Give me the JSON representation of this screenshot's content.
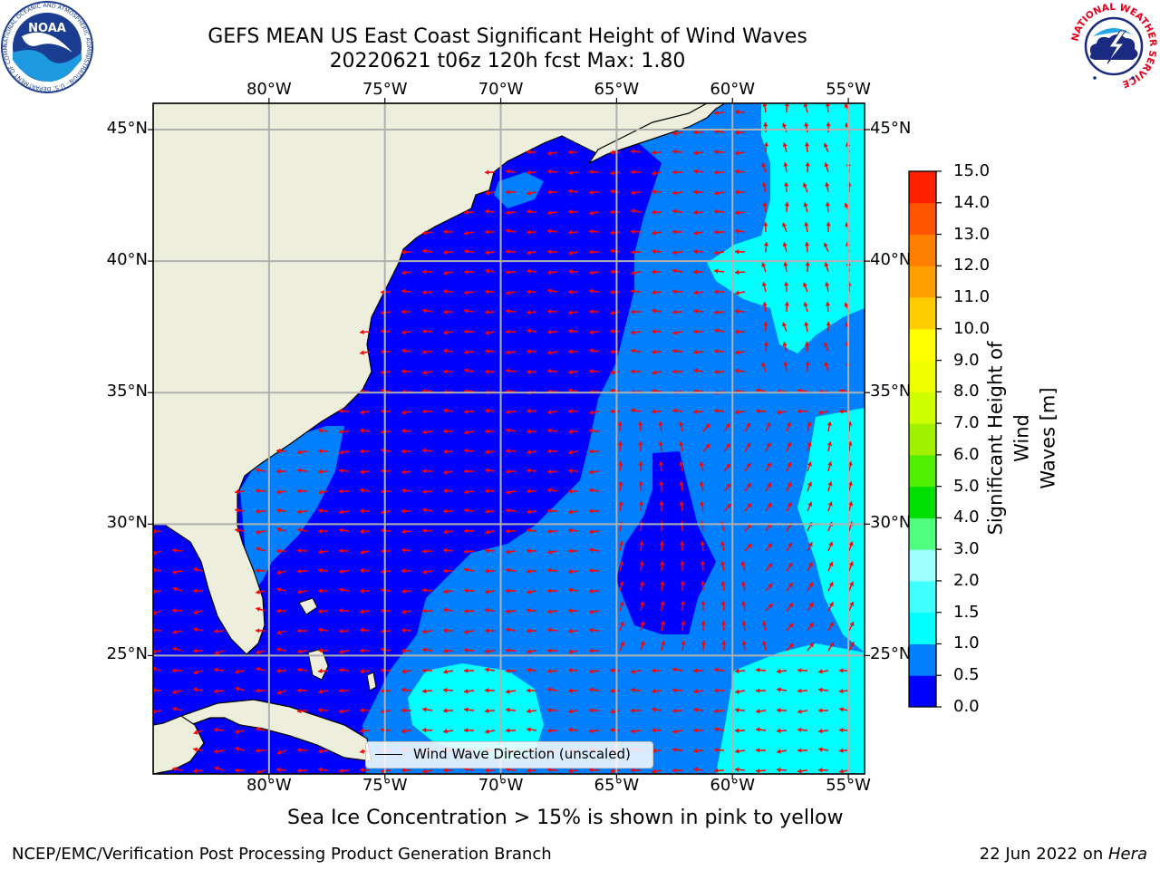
{
  "header": {
    "title_line1": "GEFS MEAN US East Coast Significant Height of Wind Waves",
    "title_line2": "20220621 t06z 120h fcst   Max: 1.80"
  },
  "logos": {
    "noaa_text": "NOAA",
    "noaa_ring_text": "NATIONAL OCEANIC AND ATMOSPHERIC ADMINISTRATION · U.S. DEPARTMENT OF COMMERCE",
    "nws_ring_text": "NATIONAL WEATHER SERVICE"
  },
  "map": {
    "lon_ticks": [
      "80°W",
      "75°W",
      "70°W",
      "65°W",
      "60°W",
      "55°W"
    ],
    "lat_ticks": [
      "45°N",
      "40°N",
      "35°N",
      "30°N",
      "25°N"
    ],
    "lat_tick_values": [
      45,
      40,
      35,
      30,
      25
    ],
    "lon_tick_values": [
      -80,
      -75,
      -70,
      -65,
      -60,
      -55
    ],
    "extent": {
      "lon_min": -85,
      "lon_max": -54.3,
      "lat_min": 20.5,
      "lat_max": 46
    },
    "legend_label": "Wind Wave Direction (unscaled)",
    "land_color": "#eeeedc",
    "arrow_color": "#ff0000"
  },
  "colorbar": {
    "title": "Significant Height of Wind Waves [m]",
    "title_line1": "Significant Height of Wind",
    "title_line2": "Waves [m]",
    "labels": [
      "15.0",
      "14.0",
      "13.0",
      "12.0",
      "11.0",
      "10.0",
      "9.0",
      "8.0",
      "7.0",
      "6.0",
      "5.0",
      "4.0",
      "3.0",
      "2.0",
      "1.5",
      "1.0",
      "0.5",
      "0.0"
    ],
    "bins_bottom_to_top": [
      "#0000ff",
      "#0080ff",
      "#00ffff",
      "#40ffff",
      "#a0ffff",
      "#50ff80",
      "#00e000",
      "#50ee00",
      "#a0f000",
      "#d0ff00",
      "#f0ff00",
      "#ffff00",
      "#ffcc00",
      "#ffa000",
      "#ff8000",
      "#ff5500",
      "#ff2000",
      "#ff0000"
    ]
  },
  "footer": {
    "note": "Sea Ice Concentration > 15% is shown in pink to yellow",
    "left": "NCEP/EMC/Verification Post Processing Product Generation Branch",
    "right_date": "22 Jun 2022 on ",
    "right_machine": "Hera"
  }
}
